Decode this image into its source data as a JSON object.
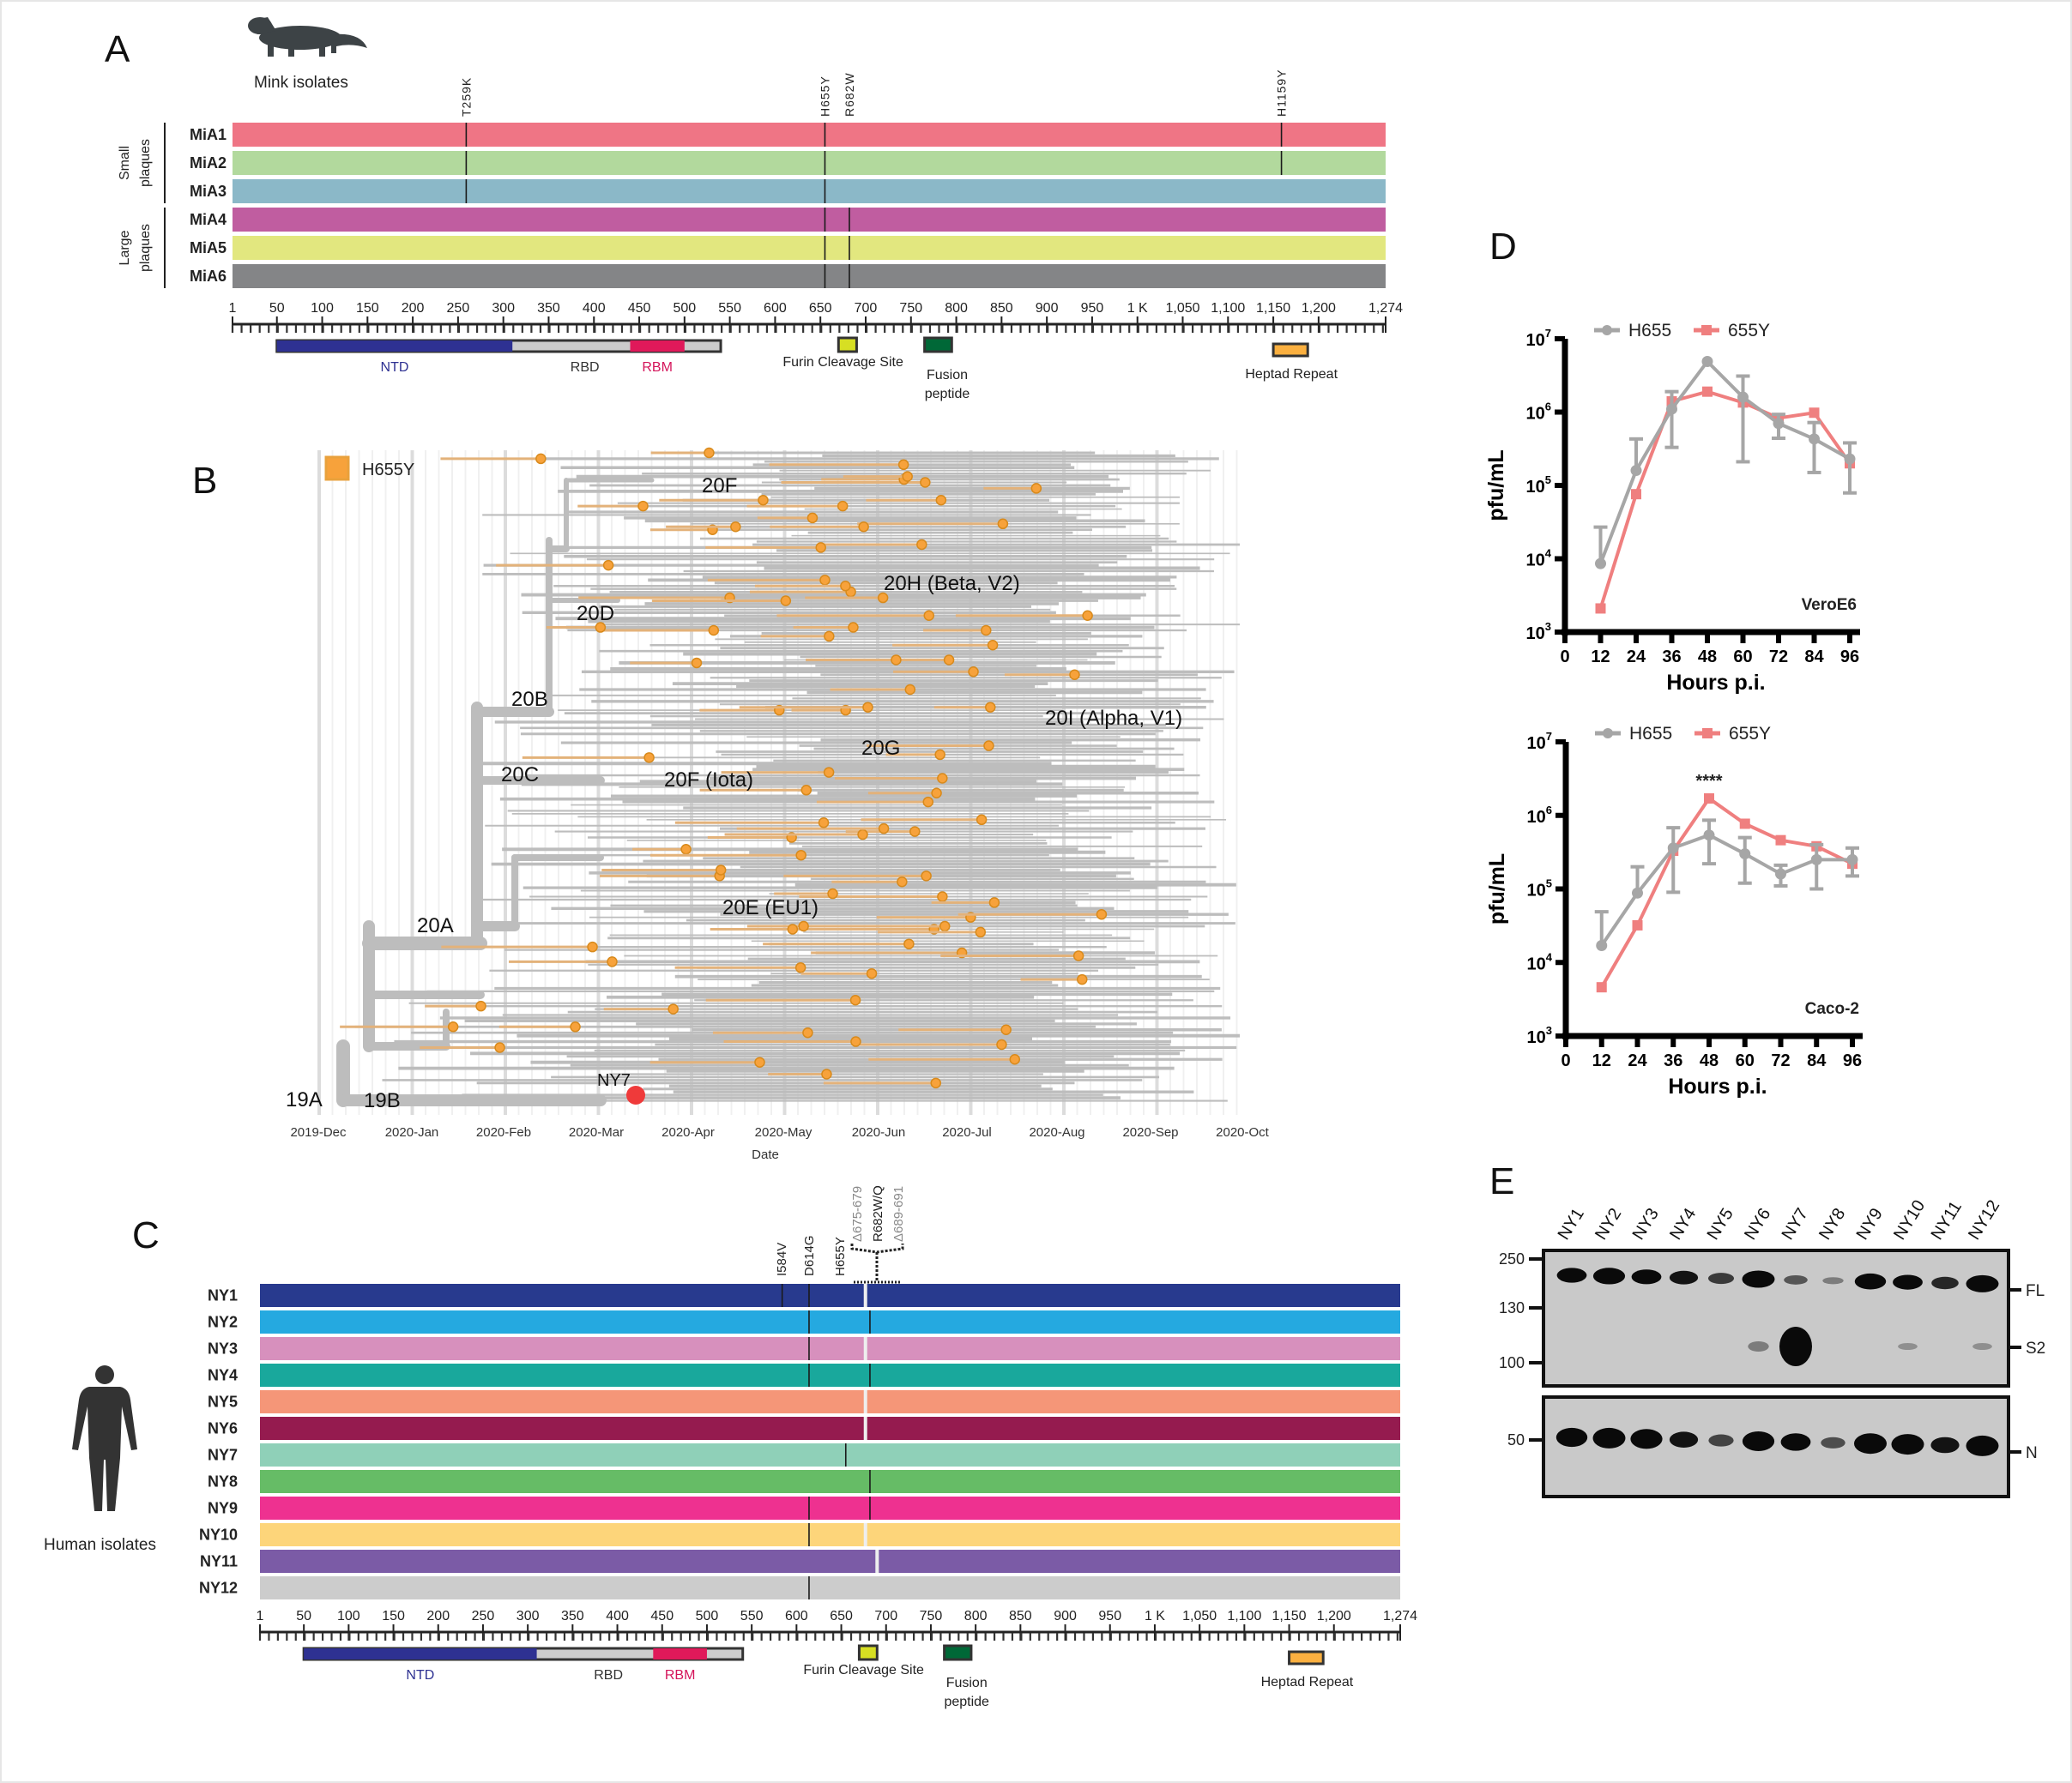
{
  "panel_labels": {
    "a": "A",
    "b": "B",
    "c": "C",
    "d": "D",
    "e": "E"
  },
  "spike_axis": {
    "length": 1274,
    "ticks": [
      1,
      50,
      100,
      150,
      200,
      250,
      300,
      350,
      400,
      450,
      500,
      550,
      600,
      650,
      700,
      750,
      800,
      850,
      900,
      950,
      1000,
      1050,
      1100,
      1150,
      1200,
      1274
    ],
    "tick_labels": [
      "1",
      "50",
      "100",
      "150",
      "200",
      "250",
      "300",
      "350",
      "400",
      "450",
      "500",
      "550",
      "600",
      "650",
      "700",
      "750",
      "800",
      "850",
      "900",
      "950",
      "1 K",
      "1,050",
      "1,100",
      "1,150",
      "1,200",
      "1,274"
    ],
    "domains": {
      "bar": [
        50,
        540
      ],
      "ntd": {
        "label": "NTD",
        "range": [
          50,
          310
        ],
        "color": "#2e3192"
      },
      "rbd": {
        "label": "RBD",
        "range": [
          310,
          540
        ],
        "color": "#cccccc"
      },
      "rbm": {
        "label": "RBM",
        "range": [
          440,
          500
        ],
        "color": "#e0195a"
      },
      "furin": {
        "label": "Furin Cleavage Site",
        "range": [
          670,
          690
        ],
        "color": "#d7df23"
      },
      "fusion": {
        "label_1": "Fusion",
        "label_2": "peptide",
        "range": [
          765,
          795
        ],
        "color": "#006837"
      },
      "heptad": {
        "label": "Heptad Repeat",
        "range": [
          1150,
          1188
        ],
        "color": "#fbb040"
      }
    }
  },
  "panel_a": {
    "title": "Mink isolates",
    "icon": "mink-icon",
    "groups": [
      {
        "label_1": "Small",
        "label_2": "plaques",
        "rows": [
          0,
          1,
          2
        ]
      },
      {
        "label_1": "Large",
        "label_2": "plaques",
        "rows": [
          3,
          4,
          5
        ]
      }
    ],
    "mutations": [
      {
        "label": "T259K",
        "pos": 259,
        "rows": [
          0,
          1,
          2
        ]
      },
      {
        "label": "H655Y",
        "pos": 655,
        "rows": [
          0,
          1,
          2,
          3,
          4,
          5
        ]
      },
      {
        "label": "R682W",
        "pos": 682,
        "rows": [
          3,
          4,
          5
        ]
      },
      {
        "label": "H1159Y",
        "pos": 1159,
        "rows": [
          0,
          1
        ]
      }
    ],
    "isolates": [
      {
        "name": "MiA1",
        "color": "#ef7585"
      },
      {
        "name": "MiA2",
        "color": "#b2d99d"
      },
      {
        "name": "MiA3",
        "color": "#8bb8c8"
      },
      {
        "name": "MiA4",
        "color": "#c05da0"
      },
      {
        "name": "MiA5",
        "color": "#e2e77f"
      },
      {
        "name": "MiA6",
        "color": "#848587"
      }
    ]
  },
  "panel_b": {
    "legend": {
      "label": "H655Y",
      "color": "#f7a23b"
    },
    "x_label": "Date",
    "x_ticks": [
      "2019-Dec",
      "2020-Jan",
      "2020-Feb",
      "2020-Mar",
      "2020-Apr",
      "2020-May",
      "2020-Jun",
      "2020-Jul",
      "2020-Aug",
      "2020-Sep",
      "2020-Oct"
    ],
    "clades": [
      "20F",
      "20H (Beta, V2)",
      "20D",
      "20B",
      "20I (Alpha, V1)",
      "20G",
      "20C",
      "20F (Iota)",
      "20E (EU1)",
      "20A",
      "19A",
      "19B"
    ],
    "highlight": {
      "label": "NY7",
      "color": "#ef3a3a"
    },
    "branch_color": "#bdbdbd"
  },
  "panel_c": {
    "title": "Human isolates",
    "icon": "human-figure-icon",
    "mutation_labels": [
      {
        "label": "I584V",
        "pos": 584,
        "style": "solid"
      },
      {
        "label": "D614G",
        "pos": 614,
        "style": "solid"
      },
      {
        "label": "H655Y",
        "pos": 655,
        "style": "solid"
      },
      {
        "label": "Δ675-679",
        "pos": 675,
        "style": "deletion"
      },
      {
        "label": "R682W/Q",
        "pos": 682,
        "style": "solid"
      },
      {
        "label": "Δ689-691",
        "pos": 689,
        "style": "deletion"
      }
    ],
    "isolates": [
      {
        "name": "NY1",
        "color": "#283a8e",
        "muts": [
          584,
          614
        ],
        "dels": [
          677
        ]
      },
      {
        "name": "NY2",
        "color": "#25a9e0",
        "muts": [
          614,
          682
        ],
        "dels": []
      },
      {
        "name": "NY3",
        "color": "#d790bd",
        "muts": [
          614
        ],
        "dels": [
          677
        ]
      },
      {
        "name": "NY4",
        "color": "#19a89c",
        "muts": [
          614,
          682
        ],
        "dels": []
      },
      {
        "name": "NY5",
        "color": "#f59678",
        "muts": [],
        "dels": [
          677
        ]
      },
      {
        "name": "NY6",
        "color": "#951b4f",
        "muts": [],
        "dels": [
          677
        ]
      },
      {
        "name": "NY7",
        "color": "#8fd0b8",
        "muts": [
          655
        ],
        "dels": []
      },
      {
        "name": "NY8",
        "color": "#66bc66",
        "muts": [
          682
        ],
        "dels": []
      },
      {
        "name": "NY9",
        "color": "#ee3190",
        "muts": [
          614,
          682
        ],
        "dels": []
      },
      {
        "name": "NY10",
        "color": "#fdd57a",
        "muts": [
          614
        ],
        "dels": [
          677
        ]
      },
      {
        "name": "NY11",
        "color": "#7b5ba6",
        "muts": [],
        "dels": [
          690
        ]
      },
      {
        "name": "NY12",
        "color": "#cccccc",
        "muts": [
          614
        ],
        "dels": []
      }
    ]
  },
  "chart_data": [
    {
      "type": "line",
      "annotation": "VeroE6",
      "xlabel": "Hours p.i.",
      "ylabel": "pfu/mL",
      "x": [
        12,
        24,
        36,
        48,
        60,
        72,
        84,
        96
      ],
      "x_ticks": [
        0,
        12,
        24,
        36,
        48,
        60,
        72,
        84,
        96
      ],
      "xlim": [
        0,
        96
      ],
      "ylim": [
        1000,
        10000000
      ],
      "yscale": "log",
      "y_ticks": [
        3,
        4,
        5,
        6,
        7
      ],
      "legend": "top",
      "series": [
        {
          "name": "H655",
          "color": "#a6a6a6",
          "marker": "circle",
          "values": [
            8600,
            160000,
            1100000,
            4900000,
            1600000,
            700000,
            430000,
            230000
          ],
          "error": [
            [
              8600,
              27000
            ],
            [
              160000,
              430000
            ],
            [
              330000,
              1900000
            ],
            [
              4900000,
              4900000
            ],
            [
              210000,
              3100000
            ],
            [
              440000,
              930000
            ],
            [
              150000,
              720000
            ],
            [
              79000,
              380000
            ]
          ]
        },
        {
          "name": "655Y",
          "color": "#ef7f7f",
          "marker": "square",
          "values": [
            2100,
            76000,
            1400000,
            1900000,
            1350000,
            830000,
            980000,
            200000
          ]
        }
      ]
    },
    {
      "type": "line",
      "annotation": "Caco-2",
      "significance": {
        "label": "****",
        "x": 48
      },
      "xlabel": "Hours p.i.",
      "ylabel": "pfu/mL",
      "x": [
        12,
        24,
        36,
        48,
        60,
        72,
        84,
        96
      ],
      "x_ticks": [
        0,
        12,
        24,
        36,
        48,
        60,
        72,
        84,
        96
      ],
      "xlim": [
        0,
        96
      ],
      "ylim": [
        1000,
        10000000
      ],
      "yscale": "log",
      "y_ticks": [
        3,
        4,
        5,
        6,
        7
      ],
      "legend": "top",
      "series": [
        {
          "name": "H655",
          "color": "#a6a6a6",
          "marker": "circle",
          "values": [
            17000,
            88000,
            360000,
            540000,
            300000,
            160000,
            250000,
            250000
          ],
          "error": [
            [
              17000,
              49000
            ],
            [
              88000,
              200000
            ],
            [
              90000,
              680000
            ],
            [
              220000,
              860000
            ],
            [
              120000,
              500000
            ],
            [
              110000,
              210000
            ],
            [
              100000,
              400000
            ],
            [
              150000,
              360000
            ]
          ]
        },
        {
          "name": "655Y",
          "color": "#ef7f7f",
          "marker": "square",
          "values": [
            4600,
            32000,
            330000,
            1700000,
            770000,
            460000,
            380000,
            220000
          ]
        }
      ]
    }
  ],
  "panel_e": {
    "lanes": [
      "NY1",
      "NY2",
      "NY3",
      "NY4",
      "NY5",
      "NY6",
      "NY7",
      "NY8",
      "NY9",
      "NY10",
      "NY11",
      "NY12"
    ],
    "mw_markers_top": [
      "250",
      "130",
      "100"
    ],
    "mw_markers_bottom": [
      "50"
    ],
    "band_labels": {
      "fl": "FL",
      "s2": "S2",
      "n": "N"
    },
    "band_intensity": {
      "fl": [
        0.8,
        0.95,
        0.8,
        0.7,
        0.5,
        1.0,
        0.35,
        0.15,
        0.9,
        0.8,
        0.6,
        1.0
      ],
      "s2": [
        0,
        0,
        0,
        0,
        0,
        0.15,
        1.0,
        0,
        0,
        0.05,
        0,
        0.05
      ],
      "n": [
        0.9,
        1.0,
        0.95,
        0.7,
        0.45,
        0.95,
        0.8,
        0.4,
        1.0,
        1.0,
        0.7,
        1.0
      ]
    }
  }
}
